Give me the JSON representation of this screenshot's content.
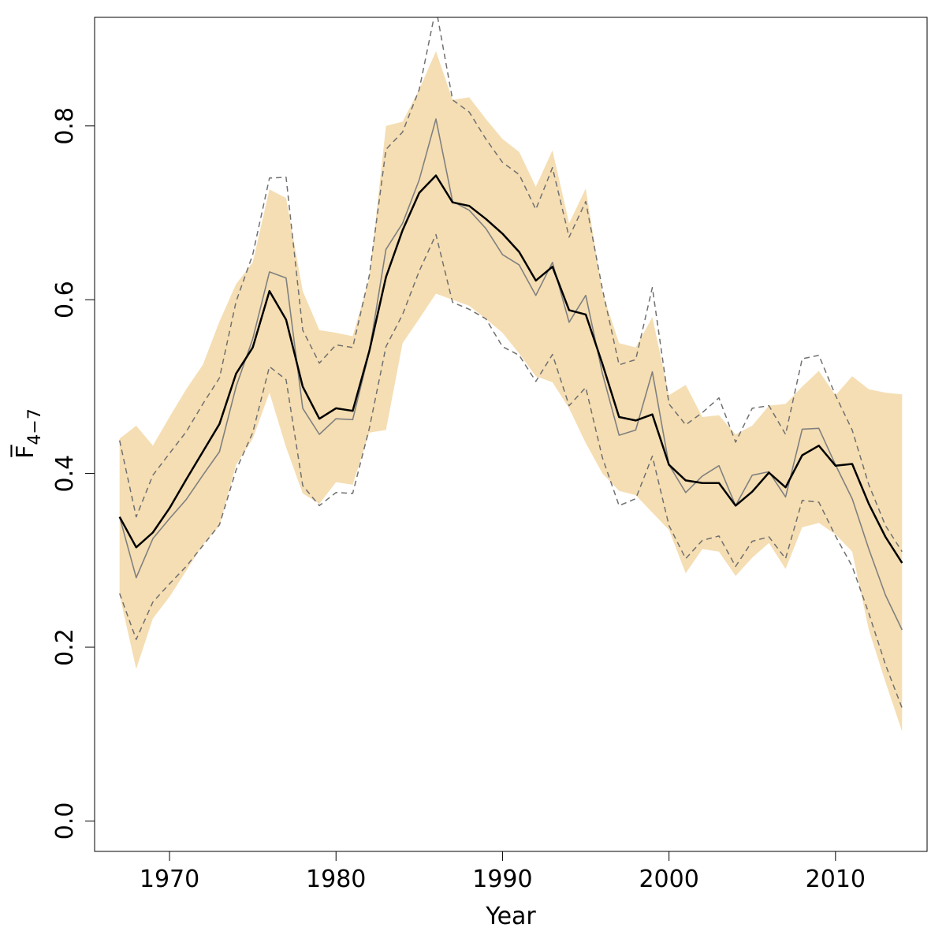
{
  "chart_data": {
    "type": "line",
    "xlabel": "Year",
    "ylabel": "F̅",
    "ylabel_subscript": "4−7",
    "xlim": [
      1965.5,
      2015.5
    ],
    "ylim": [
      -0.035,
      0.925
    ],
    "x_ticks": [
      1970,
      1980,
      1990,
      2000,
      2010
    ],
    "x_tick_labels": [
      "1970",
      "1980",
      "1990",
      "2000",
      "2010"
    ],
    "y_ticks": [
      0.0,
      0.2,
      0.4,
      0.6,
      0.8
    ],
    "y_tick_labels": [
      "0.0",
      "0.2",
      "0.4",
      "0.6",
      "0.8"
    ],
    "grid": false,
    "colors": {
      "band": "#f5deb3",
      "main": "#000000",
      "secondary": "#808080",
      "dashed": "#707070"
    },
    "x": [
      1967,
      1968,
      1969,
      1970,
      1971,
      1972,
      1973,
      1974,
      1975,
      1976,
      1977,
      1978,
      1979,
      1980,
      1981,
      1982,
      1983,
      1984,
      1985,
      1986,
      1987,
      1988,
      1989,
      1990,
      1991,
      1992,
      1993,
      1994,
      1995,
      1996,
      1997,
      1998,
      1999,
      2000,
      2001,
      2002,
      2003,
      2004,
      2005,
      2006,
      2007,
      2008,
      2009,
      2010,
      2011,
      2012,
      2013,
      2014
    ],
    "band_upper": [
      0.44,
      0.455,
      0.432,
      0.465,
      0.497,
      0.525,
      0.575,
      0.618,
      0.643,
      0.727,
      0.717,
      0.61,
      0.565,
      0.562,
      0.558,
      0.625,
      0.8,
      0.805,
      0.842,
      0.886,
      0.83,
      0.833,
      0.808,
      0.785,
      0.77,
      0.73,
      0.772,
      0.688,
      0.728,
      0.608,
      0.55,
      0.545,
      0.58,
      0.49,
      0.502,
      0.465,
      0.467,
      0.445,
      0.455,
      0.478,
      0.48,
      0.5,
      0.518,
      0.49,
      0.512,
      0.497,
      0.493,
      0.491
    ],
    "band_lower": [
      0.26,
      0.175,
      0.233,
      0.258,
      0.288,
      0.318,
      0.34,
      0.41,
      0.44,
      0.493,
      0.43,
      0.377,
      0.365,
      0.39,
      0.387,
      0.447,
      0.45,
      0.55,
      0.578,
      0.607,
      0.6,
      0.593,
      0.578,
      0.562,
      0.538,
      0.512,
      0.505,
      0.475,
      0.435,
      0.4,
      0.38,
      0.375,
      0.355,
      0.335,
      0.285,
      0.313,
      0.31,
      0.282,
      0.303,
      0.32,
      0.29,
      0.338,
      0.343,
      0.33,
      0.31,
      0.22,
      0.16,
      0.103
    ],
    "series": [
      {
        "values": [
          0.35,
          0.315,
          0.332,
          0.36,
          0.393,
          0.425,
          0.457,
          0.515,
          0.545,
          0.61,
          0.577,
          0.5,
          0.463,
          0.475,
          0.472,
          0.541,
          0.626,
          0.68,
          0.723,
          0.743,
          0.712,
          0.708,
          0.693,
          0.676,
          0.655,
          0.622,
          0.638,
          0.588,
          0.583,
          0.526,
          0.465,
          0.461,
          0.468,
          0.41,
          0.392,
          0.389,
          0.389,
          0.363,
          0.379,
          0.401,
          0.384,
          0.421,
          0.432,
          0.409,
          0.411,
          0.365,
          0.327,
          0.297
        ]
      },
      {
        "values": [
          0.35,
          0.28,
          0.325,
          0.348,
          0.37,
          0.398,
          0.425,
          0.5,
          0.555,
          0.632,
          0.625,
          0.475,
          0.445,
          0.463,
          0.462,
          0.54,
          0.658,
          0.688,
          0.738,
          0.808,
          0.713,
          0.703,
          0.682,
          0.652,
          0.64,
          0.605,
          0.643,
          0.574,
          0.605,
          0.515,
          0.444,
          0.45,
          0.517,
          0.41,
          0.378,
          0.397,
          0.409,
          0.363,
          0.398,
          0.402,
          0.373,
          0.451,
          0.452,
          0.41,
          0.371,
          0.313,
          0.26,
          0.22
        ]
      },
      {
        "values": [
          0.438,
          0.35,
          0.398,
          0.423,
          0.448,
          0.48,
          0.51,
          0.598,
          0.652,
          0.74,
          0.741,
          0.565,
          0.527,
          0.548,
          0.545,
          0.628,
          0.773,
          0.793,
          0.842,
          0.936,
          0.83,
          0.816,
          0.785,
          0.758,
          0.744,
          0.704,
          0.752,
          0.672,
          0.713,
          0.612,
          0.525,
          0.531,
          0.614,
          0.48,
          0.456,
          0.47,
          0.487,
          0.436,
          0.475,
          0.478,
          0.445,
          0.532,
          0.536,
          0.49,
          0.45,
          0.387,
          0.34,
          0.31
        ]
      },
      {
        "values": [
          0.262,
          0.209,
          0.252,
          0.273,
          0.293,
          0.317,
          0.341,
          0.404,
          0.447,
          0.523,
          0.508,
          0.386,
          0.363,
          0.378,
          0.377,
          0.452,
          0.546,
          0.583,
          0.633,
          0.675,
          0.597,
          0.589,
          0.578,
          0.546,
          0.536,
          0.506,
          0.537,
          0.478,
          0.499,
          0.418,
          0.363,
          0.371,
          0.42,
          0.34,
          0.302,
          0.323,
          0.328,
          0.293,
          0.322,
          0.327,
          0.302,
          0.369,
          0.367,
          0.328,
          0.293,
          0.239,
          0.18,
          0.13
        ]
      }
    ]
  }
}
